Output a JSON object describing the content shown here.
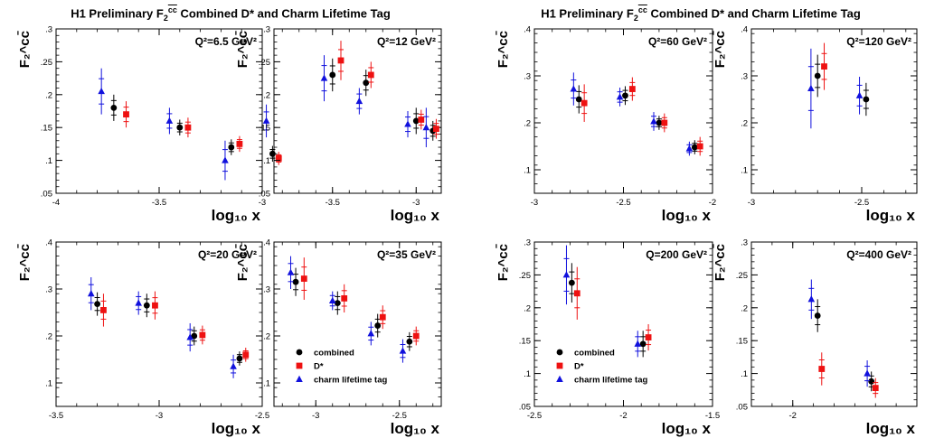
{
  "page": {
    "title_left_prefix": "H1 Preliminary F",
    "title_left_suffix": " Combined D* and Charm Lifetime Tag",
    "title_right_prefix": "H1 Preliminary F",
    "title_right_suffix": " Combined D* and Charm Lifetime Tag"
  },
  "chart_data": [
    {
      "type": "scatter",
      "group": "left",
      "panel_label": "Q²=6.5 GeV²",
      "xlim": [
        -4,
        -3
      ],
      "ylim": [
        0.05,
        0.3
      ],
      "xlabel": "log₁₀ x",
      "ylabel": "F₂^cc̄",
      "xticks": [
        -4,
        -3.5,
        -3
      ],
      "yticks": [
        0.05,
        0.1,
        0.15,
        0.2,
        0.25,
        0.3
      ],
      "series": [
        {
          "name": "combined",
          "x": [
            -3.72,
            -3.4,
            -3.15,
            -2.95
          ],
          "y": [
            0.18,
            0.15,
            0.12,
            0.11
          ],
          "err": [
            0.02,
            0.012,
            0.012,
            0.012
          ]
        },
        {
          "name": "D*",
          "x": [
            -3.66,
            -3.36,
            -3.11,
            -2.92
          ],
          "y": [
            0.17,
            0.15,
            0.125,
            0.103
          ],
          "err": [
            0.02,
            0.015,
            0.012,
            0.01
          ]
        },
        {
          "name": "charm lifetime tag",
          "x": [
            -3.78,
            -3.45,
            -3.18,
            -2.98
          ],
          "y": [
            0.205,
            0.16,
            0.1,
            0.16
          ],
          "err": [
            0.035,
            0.02,
            0.03,
            0.025
          ]
        }
      ]
    },
    {
      "type": "scatter",
      "group": "left",
      "panel_label": "Q²=12 GeV²",
      "xlim": [
        -3.85,
        -2.85
      ],
      "ylim": [
        0.05,
        0.3
      ],
      "xlabel": "log₁₀ x",
      "ylabel": "F₂^cc̄",
      "xticks": [
        -3.5,
        -3
      ],
      "yticks": [
        0.05,
        0.1,
        0.15,
        0.2,
        0.25,
        0.3
      ],
      "series": [
        {
          "name": "combined",
          "x": [
            -3.5,
            -3.3,
            -3.0,
            -2.9
          ],
          "y": [
            0.23,
            0.218,
            0.16,
            0.145
          ],
          "err": [
            0.025,
            0.02,
            0.02,
            0.015
          ]
        },
        {
          "name": "D*",
          "x": [
            -3.45,
            -3.27,
            -2.97,
            -2.88
          ],
          "y": [
            0.252,
            0.23,
            0.162,
            0.148
          ],
          "err": [
            0.03,
            0.02,
            0.015,
            0.015
          ]
        },
        {
          "name": "charm lifetime tag",
          "x": [
            -3.55,
            -3.34,
            -3.05,
            -2.94
          ],
          "y": [
            0.225,
            0.19,
            0.155,
            0.15
          ],
          "err": [
            0.035,
            0.02,
            0.02,
            0.03
          ]
        }
      ]
    },
    {
      "type": "scatter",
      "group": "left",
      "panel_label": "Q²=20 GeV²",
      "xlim": [
        -3.5,
        -2.5
      ],
      "ylim": [
        0.05,
        0.4
      ],
      "xlabel": "log₁₀ x",
      "ylabel": "F₂^cc̄",
      "xticks": [
        -3.5,
        -3,
        -2.5
      ],
      "yticks": [
        0.1,
        0.2,
        0.3,
        0.4
      ],
      "series": [
        {
          "name": "combined",
          "x": [
            -3.3,
            -3.06,
            -2.83,
            -2.61
          ],
          "y": [
            0.268,
            0.265,
            0.2,
            0.152
          ],
          "err": [
            0.025,
            0.025,
            0.02,
            0.015
          ]
        },
        {
          "name": "D*",
          "x": [
            -3.27,
            -3.02,
            -2.79,
            -2.58
          ],
          "y": [
            0.255,
            0.265,
            0.202,
            0.16
          ],
          "err": [
            0.035,
            0.03,
            0.02,
            0.015
          ]
        },
        {
          "name": "charm lifetime tag",
          "x": [
            -3.33,
            -3.1,
            -2.85,
            -2.64
          ],
          "y": [
            0.29,
            0.27,
            0.197,
            0.135
          ],
          "err": [
            0.035,
            0.025,
            0.03,
            0.025
          ]
        }
      ]
    },
    {
      "type": "scatter",
      "group": "left",
      "panel_label": "Q²=35 GeV²",
      "xlim": [
        -3.25,
        -2.25
      ],
      "ylim": [
        0.05,
        0.4
      ],
      "xlabel": "log₁₀ x",
      "ylabel": "F₂^cc̄",
      "xticks": [
        -3,
        -2.5
      ],
      "yticks": [
        0.1,
        0.2,
        0.3,
        0.4
      ],
      "series": [
        {
          "name": "combined",
          "x": [
            -3.12,
            -2.87,
            -2.63,
            -2.44
          ],
          "y": [
            0.315,
            0.27,
            0.222,
            0.188
          ],
          "err": [
            0.03,
            0.025,
            0.025,
            0.02
          ]
        },
        {
          "name": "D*",
          "x": [
            -3.07,
            -2.83,
            -2.6,
            -2.4
          ],
          "y": [
            0.322,
            0.28,
            0.24,
            0.2
          ],
          "err": [
            0.045,
            0.03,
            0.025,
            0.02
          ]
        },
        {
          "name": "charm lifetime tag",
          "x": [
            -3.15,
            -2.9,
            -2.67,
            -2.48
          ],
          "y": [
            0.335,
            0.275,
            0.205,
            0.168
          ],
          "err": [
            0.035,
            0.02,
            0.025,
            0.025
          ]
        }
      ]
    },
    {
      "type": "scatter",
      "group": "right",
      "panel_label": "Q²=60 GeV²",
      "xlim": [
        -3,
        -2
      ],
      "ylim": [
        0.05,
        0.4
      ],
      "xlabel": "log₁₀ x",
      "ylabel": "F₂^cc̄",
      "xticks": [
        -3,
        -2.5,
        -2
      ],
      "yticks": [
        0.1,
        0.2,
        0.3,
        0.4
      ],
      "series": [
        {
          "name": "combined",
          "x": [
            -2.75,
            -2.49,
            -2.3,
            -2.1
          ],
          "y": [
            0.25,
            0.258,
            0.2,
            0.148
          ],
          "err": [
            0.03,
            0.02,
            0.015,
            0.015
          ]
        },
        {
          "name": "D*",
          "x": [
            -2.72,
            -2.45,
            -2.27,
            -2.07
          ],
          "y": [
            0.242,
            0.272,
            0.2,
            0.15
          ],
          "err": [
            0.04,
            0.025,
            0.02,
            0.02
          ]
        },
        {
          "name": "charm lifetime tag",
          "x": [
            -2.78,
            -2.52,
            -2.33,
            -2.13
          ],
          "y": [
            0.272,
            0.255,
            0.203,
            0.145
          ],
          "err": [
            0.035,
            0.02,
            0.02,
            0.015
          ]
        }
      ]
    },
    {
      "type": "scatter",
      "group": "right",
      "panel_label": "Q²=120 GeV²",
      "xlim": [
        -3,
        -2.25
      ],
      "ylim": [
        0.05,
        0.4
      ],
      "xlabel": "log₁₀ x",
      "ylabel": "F₂^cc̄",
      "xticks": [
        -3,
        -2.5
      ],
      "yticks": [
        0.1,
        0.2,
        0.3,
        0.4
      ],
      "series": [
        {
          "name": "combined",
          "x": [
            -2.7,
            -2.48
          ],
          "y": [
            0.3,
            0.25
          ],
          "err": [
            0.045,
            0.035
          ]
        },
        {
          "name": "D*",
          "x": [
            -2.67
          ],
          "y": [
            0.32
          ],
          "err": [
            0.05
          ]
        },
        {
          "name": "charm lifetime tag",
          "x": [
            -2.73,
            -2.51
          ],
          "y": [
            0.273,
            0.258
          ],
          "err": [
            0.085,
            0.04
          ]
        }
      ]
    },
    {
      "type": "scatter",
      "group": "right",
      "panel_label": "Q=200 GeV²",
      "xlim": [
        -2.5,
        -1.5
      ],
      "ylim": [
        0.05,
        0.3
      ],
      "xlabel": "log₁₀ x",
      "ylabel": "F₂^cc̄",
      "xticks": [
        -2.5,
        -2,
        -1.5
      ],
      "yticks": [
        0.05,
        0.1,
        0.15,
        0.2,
        0.25,
        0.3
      ],
      "series": [
        {
          "name": "combined",
          "x": [
            -2.29,
            -1.89
          ],
          "y": [
            0.238,
            0.145
          ],
          "err": [
            0.03,
            0.02
          ]
        },
        {
          "name": "D*",
          "x": [
            -2.26,
            -1.86
          ],
          "y": [
            0.222,
            0.155
          ],
          "err": [
            0.04,
            0.02
          ]
        },
        {
          "name": "charm lifetime tag",
          "x": [
            -2.32,
            -1.92
          ],
          "y": [
            0.25,
            0.145
          ],
          "err": [
            0.045,
            0.02
          ]
        }
      ]
    },
    {
      "type": "scatter",
      "group": "right",
      "panel_label": "Q²=400 GeV²",
      "xlim": [
        -2.2,
        -1.4
      ],
      "ylim": [
        0.05,
        0.3
      ],
      "xlabel": "log₁₀ x",
      "ylabel": "F₂^cc̄",
      "xticks": [
        -2
      ],
      "yticks": [
        0.05,
        0.1,
        0.15,
        0.2,
        0.25,
        0.3
      ],
      "series": [
        {
          "name": "combined",
          "x": [
            -1.88,
            -1.62
          ],
          "y": [
            0.188,
            0.088
          ],
          "err": [
            0.025,
            0.015
          ]
        },
        {
          "name": "D*",
          "x": [
            -1.86,
            -1.6
          ],
          "y": [
            0.107,
            0.078
          ],
          "err": [
            0.025,
            0.015
          ]
        },
        {
          "name": "charm lifetime tag",
          "x": [
            -1.91,
            -1.64
          ],
          "y": [
            0.213,
            0.1
          ],
          "err": [
            0.03,
            0.02
          ]
        }
      ]
    }
  ],
  "legend": {
    "entries": [
      "combined",
      "D*",
      "charm lifetime tag"
    ],
    "placement": "lower-left inside Q²=35 GeV² and Q=200 GeV² panels"
  },
  "colors": {
    "combined": "#000000",
    "D*": "#ee1111",
    "charm lifetime tag": "#1111dd"
  },
  "markers": {
    "combined": "circle",
    "D*": "square",
    "charm lifetime tag": "triangle"
  }
}
